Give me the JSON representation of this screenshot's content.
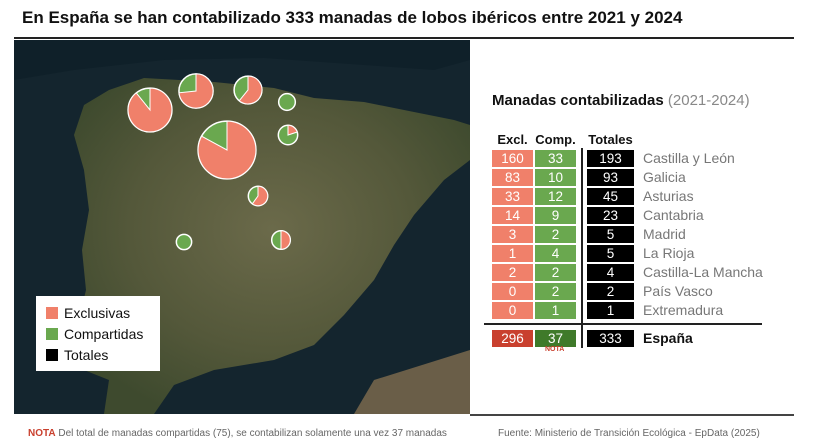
{
  "title": "En España se han contabilizado 333 manadas de lobos ibéricos entre 2021 y 2024",
  "legend": {
    "exclusivas": "Exclusivas",
    "compartidas": "Compartidas",
    "totales": "Totales"
  },
  "colors": {
    "exclusivas": "#f0806a",
    "compartidas": "#6aa84f",
    "totales": "#000000",
    "total_excl": "#c9402e",
    "total_comp": "#3f7a2a"
  },
  "panel": {
    "title": "Manadas contabilizadas",
    "period": "(2021-2024)",
    "headers": [
      "Excl.",
      "Comp.",
      "Totales"
    ],
    "nota": "NOTA"
  },
  "chart_data": {
    "type": "table",
    "columns": [
      "Excl.",
      "Comp.",
      "Totales"
    ],
    "rows": [
      {
        "region": "Castilla y León",
        "excl": 160,
        "comp": 33,
        "total": 193
      },
      {
        "region": "Galicia",
        "excl": 83,
        "comp": 10,
        "total": 93
      },
      {
        "region": "Asturias",
        "excl": 33,
        "comp": 12,
        "total": 45
      },
      {
        "region": "Cantabria",
        "excl": 14,
        "comp": 9,
        "total": 23
      },
      {
        "region": "Madrid",
        "excl": 3,
        "comp": 2,
        "total": 5
      },
      {
        "region": "La Rioja",
        "excl": 1,
        "comp": 4,
        "total": 5
      },
      {
        "region": "Castilla-La Mancha",
        "excl": 2,
        "comp": 2,
        "total": 4
      },
      {
        "region": "País Vasco",
        "excl": 0,
        "comp": 2,
        "total": 2
      },
      {
        "region": "Extremadura",
        "excl": 0,
        "comp": 1,
        "total": 1
      }
    ],
    "total": {
      "region": "España",
      "excl": 296,
      "comp": 37,
      "total": 333
    },
    "map_pies": "proportional pie per region: exclusivas vs compartidas"
  },
  "footer": {
    "nota_label": "NOTA",
    "nota": "Del total de manadas compartidas (75), se contabilizan solamente una vez 37 manadas",
    "source": "Fuente: Ministerio de Transición Ecológica - EpData (2025)"
  }
}
